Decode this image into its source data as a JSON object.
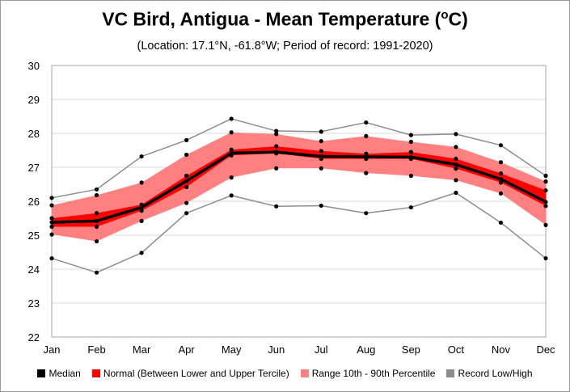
{
  "title": "VC Bird, Antigua - Mean Temperature (oC)",
  "subtitle": "(Location: 17.1°N, -61.8°W; Period of record: 1991-2020)",
  "colors": {
    "median": "#000000",
    "normal": "#ff0000",
    "range": "#ff8080",
    "record": "#8c8c8c",
    "grid": "#d9d9d9"
  },
  "legend": [
    {
      "label": "Median",
      "color": "#000000"
    },
    {
      "label": "Normal (Between Lower and Upper Tercile)",
      "color": "#ff0000"
    },
    {
      "label": "Range 10th - 90th Percentile",
      "color": "#ff8080"
    },
    {
      "label": "Record Low/High",
      "color": "#8c8c8c"
    }
  ],
  "chart_data": {
    "type": "line",
    "categories": [
      "Jan",
      "Feb",
      "Mar",
      "Apr",
      "May",
      "Jun",
      "Jul",
      "Aug",
      "Sep",
      "Oct",
      "Nov",
      "Dec"
    ],
    "ylim": [
      22,
      30
    ],
    "yticks": [
      22,
      23,
      24,
      25,
      26,
      27,
      28,
      29,
      30
    ],
    "grid": true,
    "legend_position": "bottom",
    "series": [
      {
        "name": "Median",
        "values": [
          25.38,
          25.42,
          25.82,
          26.6,
          27.42,
          27.45,
          27.32,
          27.31,
          27.3,
          27.08,
          26.65,
          25.98
        ]
      },
      {
        "name": "Lower Tercile",
        "values": [
          25.25,
          25.25,
          25.72,
          26.42,
          27.35,
          27.41,
          27.25,
          27.25,
          27.25,
          26.96,
          26.55,
          25.86
        ]
      },
      {
        "name": "Upper Tercile",
        "values": [
          25.5,
          25.65,
          25.9,
          26.75,
          27.52,
          27.62,
          27.48,
          27.4,
          27.45,
          27.25,
          26.82,
          26.32
        ]
      },
      {
        "name": "10th Percentile",
        "values": [
          25.02,
          24.82,
          25.42,
          25.95,
          26.7,
          26.97,
          26.97,
          26.83,
          26.75,
          26.62,
          26.23,
          25.3
        ]
      },
      {
        "name": "90th Percentile",
        "values": [
          25.88,
          26.18,
          26.55,
          27.37,
          28.03,
          27.98,
          27.77,
          27.92,
          27.75,
          27.6,
          27.15,
          26.58
        ]
      },
      {
        "name": "Record Low",
        "values": [
          24.32,
          23.9,
          24.48,
          25.65,
          26.17,
          25.85,
          25.87,
          25.65,
          25.82,
          26.25,
          25.37,
          24.32
        ]
      },
      {
        "name": "Record High",
        "values": [
          26.1,
          26.35,
          27.32,
          27.8,
          28.43,
          28.07,
          28.05,
          28.32,
          27.95,
          27.98,
          27.65,
          26.75
        ]
      }
    ]
  }
}
